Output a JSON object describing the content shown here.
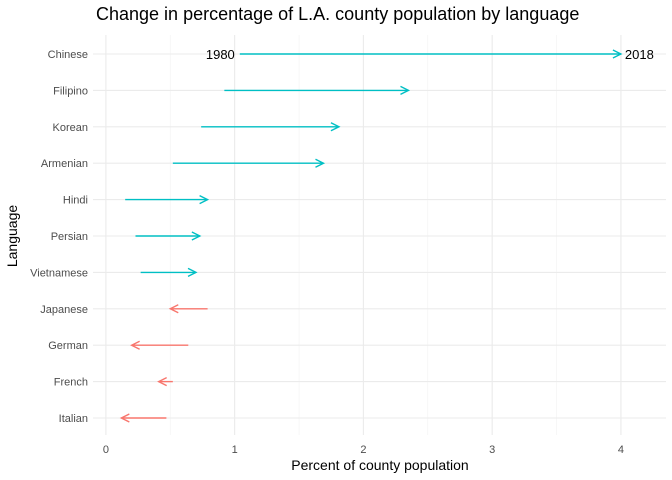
{
  "chart_data": {
    "type": "arrow-range",
    "title": "Change in percentage of L.A. county population by language",
    "xlabel": "Percent of county population",
    "ylabel": "Language",
    "xlim": [
      -0.1,
      4.35
    ],
    "xticks": [
      0,
      1,
      2,
      3,
      4
    ],
    "grid": true,
    "legend": "none",
    "colors": {
      "increase": "#00BFC4",
      "decrease": "#F8766D"
    },
    "annotations": {
      "start_year": "1980",
      "end_year": "2018"
    },
    "languages": [
      {
        "name": "Chinese",
        "pct_1980": 1.04,
        "pct_2018": 4.0
      },
      {
        "name": "Filipino",
        "pct_1980": 0.92,
        "pct_2018": 2.35
      },
      {
        "name": "Korean",
        "pct_1980": 0.74,
        "pct_2018": 1.81
      },
      {
        "name": "Armenian",
        "pct_1980": 0.52,
        "pct_2018": 1.69
      },
      {
        "name": "Hindi",
        "pct_1980": 0.15,
        "pct_2018": 0.79
      },
      {
        "name": "Persian",
        "pct_1980": 0.23,
        "pct_2018": 0.73
      },
      {
        "name": "Vietnamese",
        "pct_1980": 0.27,
        "pct_2018": 0.7
      },
      {
        "name": "Japanese",
        "pct_1980": 0.79,
        "pct_2018": 0.5
      },
      {
        "name": "German",
        "pct_1980": 0.64,
        "pct_2018": 0.2
      },
      {
        "name": "French",
        "pct_1980": 0.52,
        "pct_2018": 0.41
      },
      {
        "name": "Italian",
        "pct_1980": 0.47,
        "pct_2018": 0.12
      }
    ]
  }
}
